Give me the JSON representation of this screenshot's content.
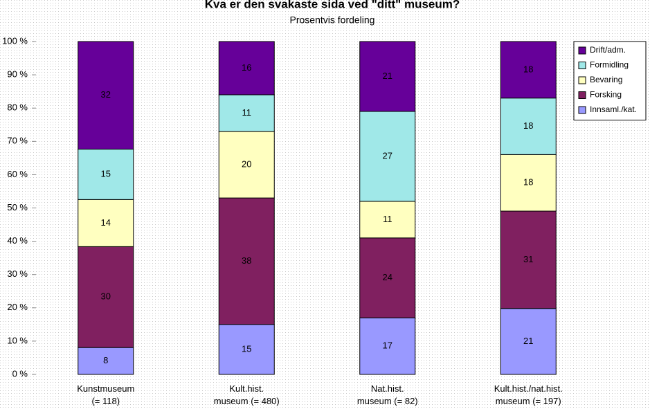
{
  "chart_data": {
    "type": "bar",
    "stacking": "percent",
    "title": "Kva er den svakaste sida ved \"ditt\" museum?",
    "subtitle": "Prosentvis fordeling",
    "categories": [
      "Kunstmuseum\n(= 118)",
      "Kult.hist.\nmuseum (= 480)",
      "Nat.hist.\nmuseum (= 82)",
      "Kult.hist./nat.hist.\nmuseum (= 197)"
    ],
    "series": [
      {
        "name": "Innsaml./kat.",
        "color": "#9999ff",
        "values": [
          8,
          15,
          17,
          21
        ]
      },
      {
        "name": "Forsking",
        "color": "#802060",
        "values": [
          30,
          38,
          24,
          31
        ]
      },
      {
        "name": "Bevaring",
        "color": "#ffffc0",
        "values": [
          14,
          20,
          11,
          18
        ]
      },
      {
        "name": "Formidling",
        "color": "#a0e8e8",
        "values": [
          15,
          11,
          27,
          18
        ]
      },
      {
        "name": "Drift/adm.",
        "color": "#660099",
        "values": [
          32,
          16,
          21,
          18
        ]
      }
    ],
    "ylim": [
      0,
      100
    ],
    "yticks": [
      {
        "value": 0,
        "label": "0 %"
      },
      {
        "value": 10,
        "label": "10 %"
      },
      {
        "value": 20,
        "label": "20 %"
      },
      {
        "value": 30,
        "label": "30 %"
      },
      {
        "value": 40,
        "label": "40 %"
      },
      {
        "value": 50,
        "label": "50 %"
      },
      {
        "value": 60,
        "label": "60 %"
      },
      {
        "value": 70,
        "label": "70 %"
      },
      {
        "value": 80,
        "label": "80 %"
      },
      {
        "value": 90,
        "label": "90 %"
      },
      {
        "value": 100,
        "label": "100 %"
      }
    ],
    "legend": "top-right"
  }
}
